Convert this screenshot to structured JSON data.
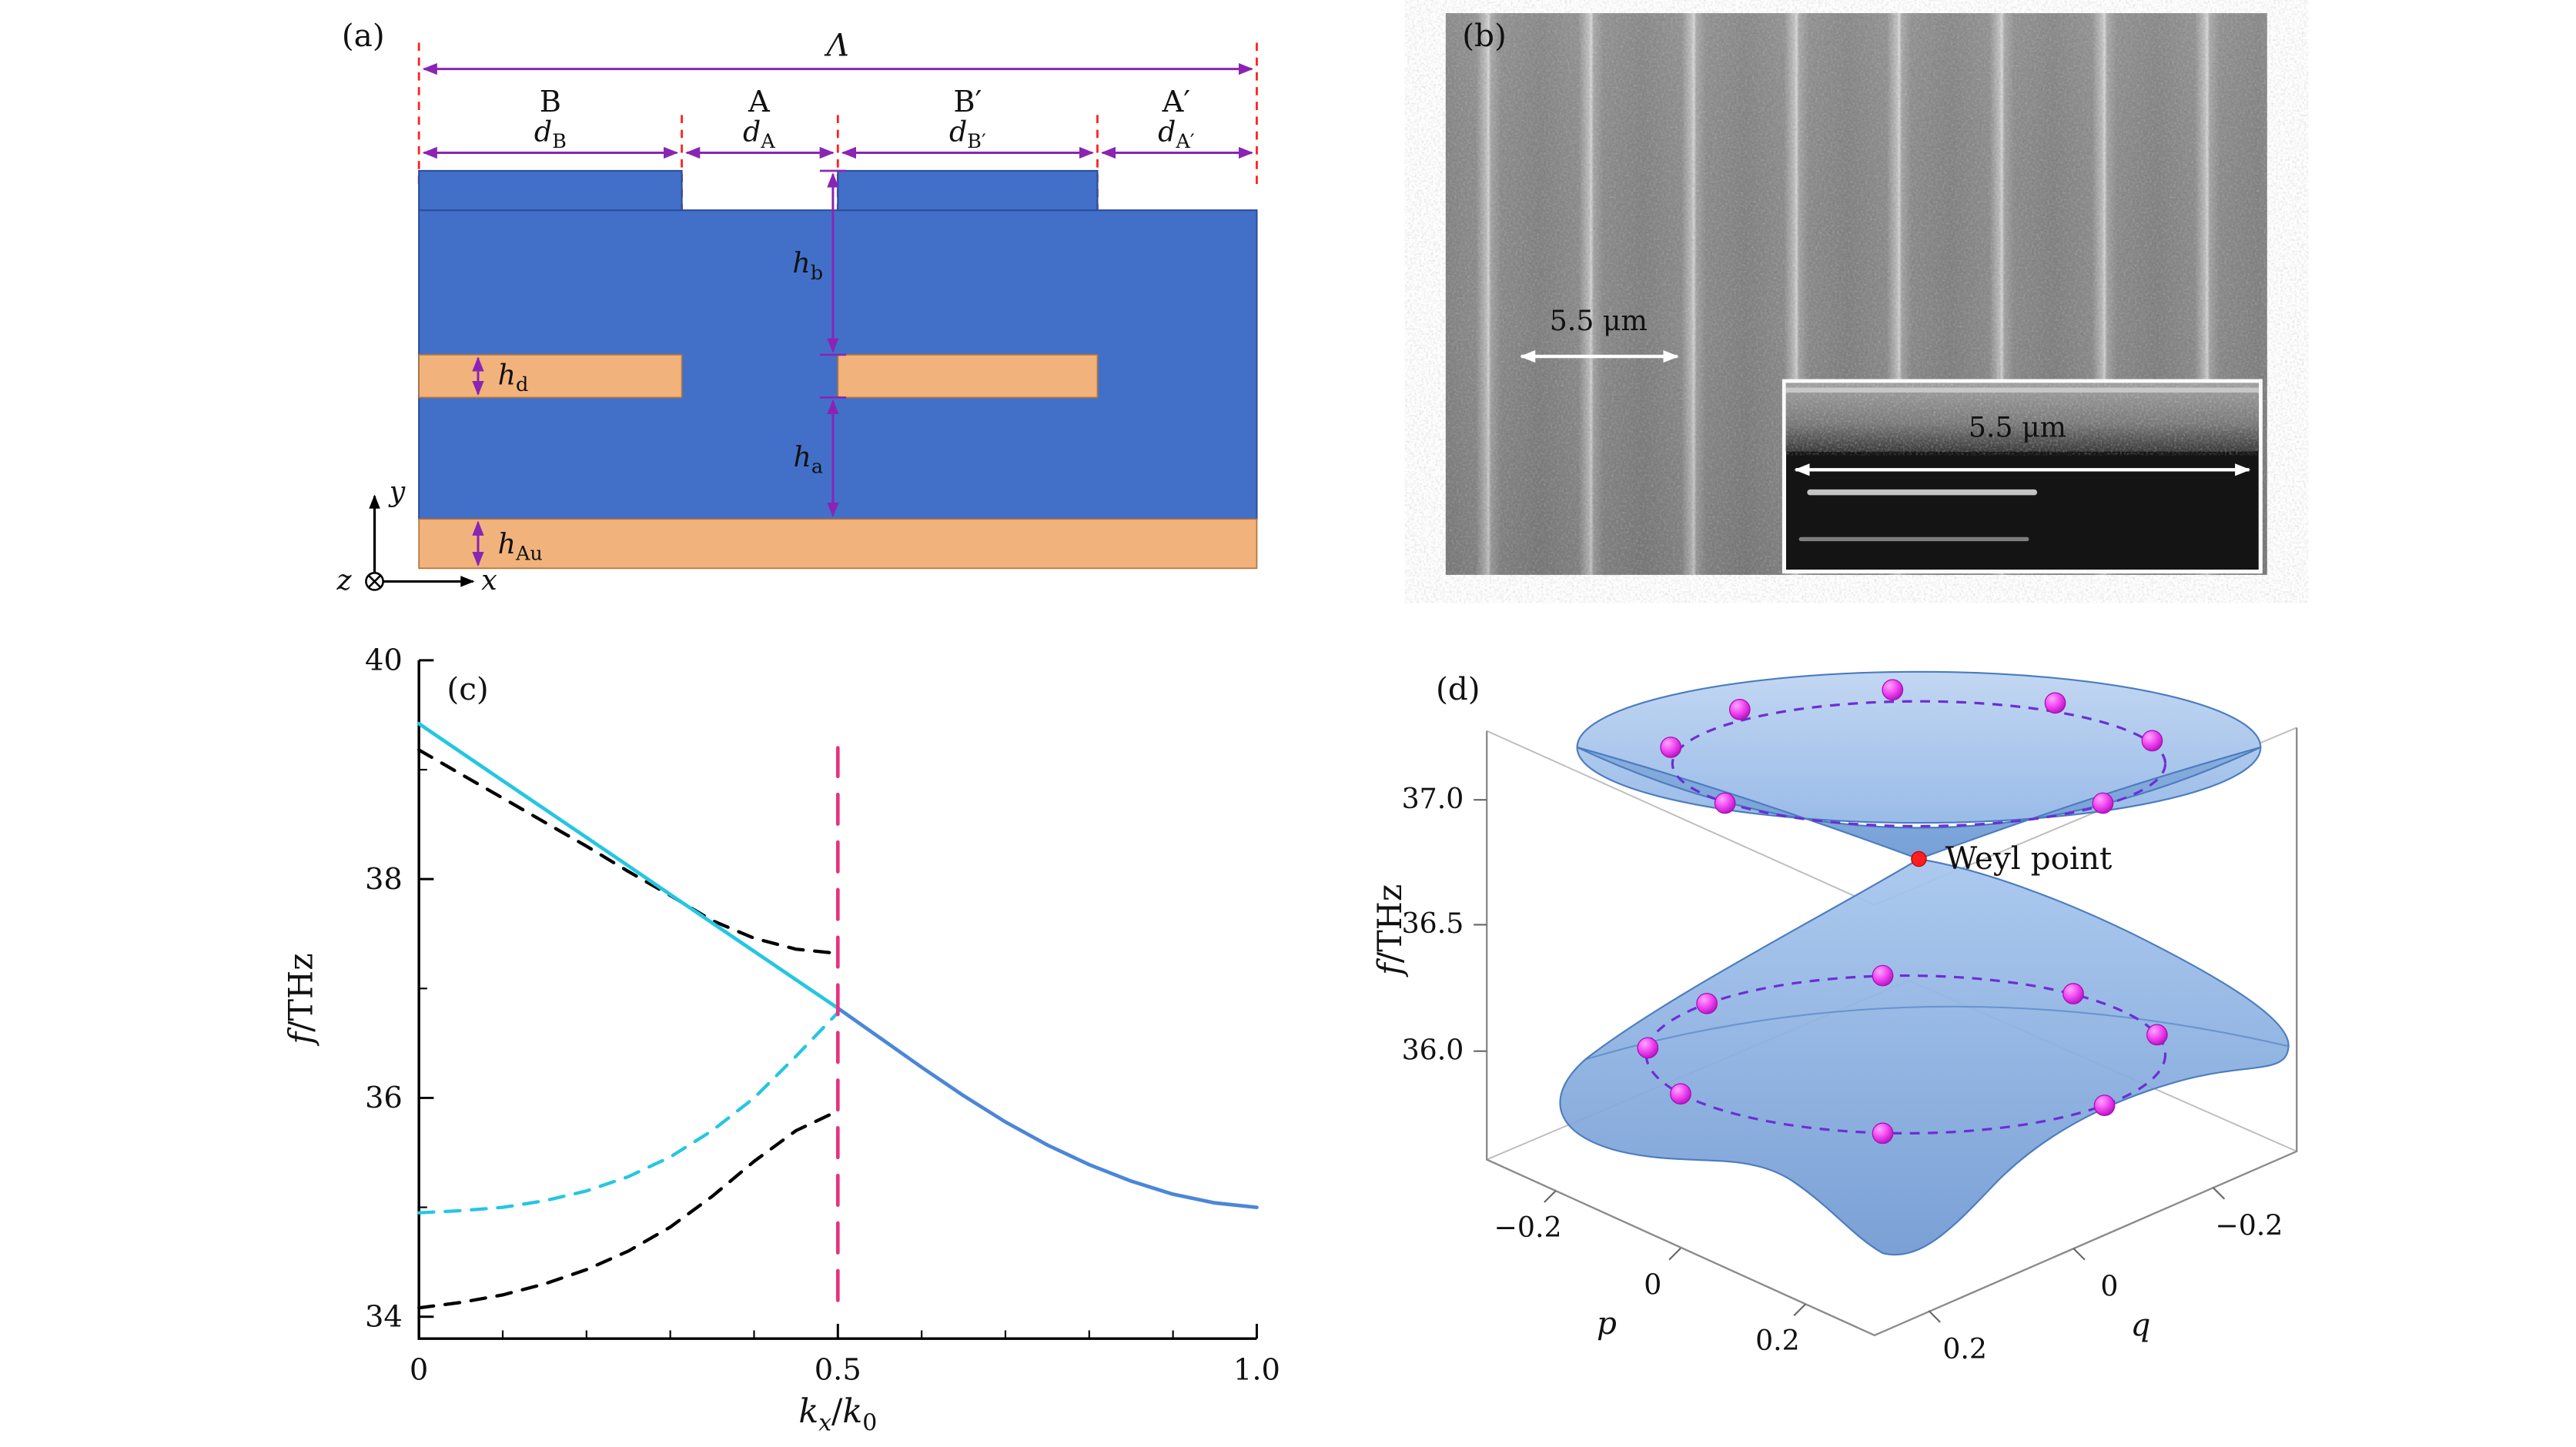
{
  "figure": {
    "caption_labels": [
      "(a)",
      "(b)",
      "(c)",
      "(d)"
    ]
  },
  "colors": {
    "structure_blue": "#4270c8",
    "structure_gold": "#f2b27c",
    "annotation_purple": "#8a24b4",
    "guide_red": "#ff2020",
    "curve_cyan": "#25c6e2",
    "curve_blue": "#4c86d8",
    "curve_black": "#000000",
    "zone_boundary_magenta": "#e6337e",
    "surface_blue": "#7fa7da",
    "ring_magenta": "#e832e0",
    "weyl_red": "#ff1f1f"
  },
  "panel_a": {
    "label": "(a)",
    "lambda": "Λ",
    "regions": [
      "B",
      "A",
      "B′",
      "A′"
    ],
    "d_main": "d",
    "d_subs": [
      "B",
      "A",
      "B′",
      "A′"
    ],
    "h_main": "h",
    "h_subs": {
      "b": "b",
      "d": "d",
      "a": "a",
      "au": "Au"
    },
    "axis_labels": {
      "x": "x",
      "y": "y",
      "z": "z"
    }
  },
  "panel_b": {
    "label": "(b)",
    "scale_label": "5.5 μm",
    "inset_scale_label": "5.5 μm"
  },
  "panel_c": {
    "label": "(c)",
    "ylabel_main": "f",
    "ylabel_rest": "/THz",
    "xlabel_parts": [
      "k",
      "x",
      "/",
      "k",
      "0"
    ]
  },
  "chart_data": {
    "type": "line",
    "title": "",
    "xlabel": "kx/k0",
    "ylabel": "f/THz",
    "xlim": [
      0,
      1.0
    ],
    "ylim": [
      33.8,
      40.0
    ],
    "x_ticks": [
      "0",
      "0.5",
      "1.0"
    ],
    "y_ticks": [
      "34",
      "36",
      "38",
      "40"
    ],
    "x_minor_ticks": [
      0.1,
      0.2,
      0.3,
      0.4,
      0.6,
      0.7,
      0.8,
      0.9
    ],
    "y_minor_ticks": [
      35,
      37,
      39
    ],
    "legend": "none",
    "series": [
      {
        "name": "band-edge-upper-dashed",
        "color": "#000000",
        "dash": "9 7",
        "width": 2,
        "x": [
          0,
          0.05,
          0.1,
          0.15,
          0.2,
          0.25,
          0.3,
          0.35,
          0.4,
          0.45,
          0.5
        ],
        "y": [
          39.18,
          38.96,
          38.74,
          38.52,
          38.3,
          38.07,
          37.85,
          37.62,
          37.46,
          37.36,
          37.32
        ]
      },
      {
        "name": "band-edge-lower-dashed",
        "color": "#000000",
        "dash": "9 7",
        "width": 2,
        "x": [
          0,
          0.05,
          0.1,
          0.15,
          0.2,
          0.25,
          0.3,
          0.35,
          0.4,
          0.45,
          0.5
        ],
        "y": [
          34.08,
          34.13,
          34.2,
          34.3,
          34.43,
          34.6,
          34.82,
          35.1,
          35.42,
          35.7,
          35.88
        ]
      },
      {
        "name": "surface-mode-cyan-dashed",
        "color": "#25c6e2",
        "dash": "9 7",
        "width": 2,
        "x": [
          0,
          0.05,
          0.1,
          0.15,
          0.2,
          0.25,
          0.3,
          0.35,
          0.4,
          0.45,
          0.5
        ],
        "y": [
          34.95,
          34.97,
          35.0,
          35.06,
          35.15,
          35.28,
          35.46,
          35.7,
          36.0,
          36.38,
          36.78
        ]
      },
      {
        "name": "surface-mode-cyan-solid",
        "color": "#25c6e2",
        "dash": null,
        "width": 2.2,
        "x": [
          0,
          0.05,
          0.1,
          0.15,
          0.2,
          0.25,
          0.3,
          0.35,
          0.4,
          0.45,
          0.5
        ],
        "y": [
          39.42,
          39.16,
          38.9,
          38.64,
          38.38,
          38.12,
          37.86,
          37.6,
          37.34,
          37.08,
          36.82
        ]
      },
      {
        "name": "surface-mode-blue-solid",
        "color": "#4c86d8",
        "dash": null,
        "width": 2.2,
        "x": [
          0.5,
          0.55,
          0.6,
          0.65,
          0.7,
          0.75,
          0.8,
          0.85,
          0.9,
          0.95,
          1.0
        ],
        "y": [
          36.82,
          36.55,
          36.28,
          36.02,
          35.78,
          35.57,
          35.39,
          35.24,
          35.12,
          35.04,
          35.0
        ]
      },
      {
        "name": "zone-boundary-magenta-dashed",
        "color": "#e6337e",
        "dash": "18 11",
        "width": 2.2,
        "x": [
          0.5,
          0.5
        ],
        "y": [
          34.15,
          39.2
        ]
      }
    ]
  },
  "panel_d": {
    "label": "(d)",
    "weyl_label": "Weyl point",
    "zlabel_main": "f",
    "zlabel_rest": "/THz",
    "z_ticks": [
      "37.0",
      "36.5",
      "36.0"
    ],
    "p_label": "p",
    "p_ticks": [
      "−0.2",
      "0",
      "0.2"
    ],
    "q_label": "q",
    "q_ticks": [
      "0.2",
      "0",
      "−0.2"
    ],
    "weyl_point": [
      1168,
      523
    ],
    "spheres_upper": [
      [
        1017,
        455
      ],
      [
        1059,
        432
      ],
      [
        1152,
        420
      ],
      [
        1251,
        428
      ],
      [
        1310,
        451
      ],
      [
        1280,
        489
      ],
      [
        1050,
        489
      ]
    ],
    "spheres_lower": [
      [
        1003,
        638
      ],
      [
        1039,
        611
      ],
      [
        1146,
        594
      ],
      [
        1262,
        605
      ],
      [
        1313,
        630
      ],
      [
        1281,
        673
      ],
      [
        1146,
        690
      ],
      [
        1023,
        666
      ]
    ]
  }
}
